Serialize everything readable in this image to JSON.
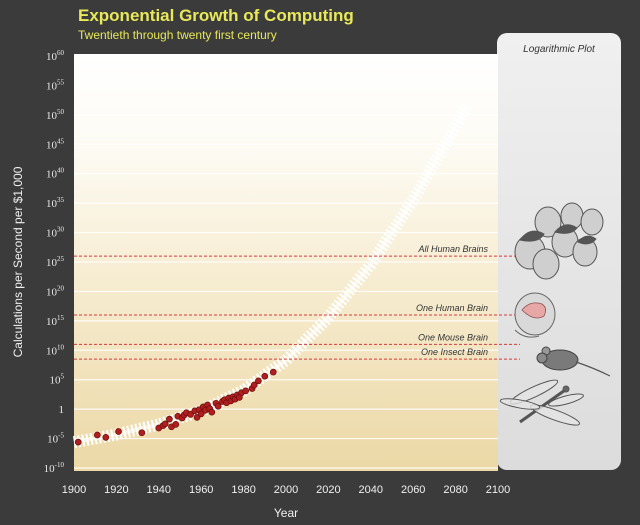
{
  "page": {
    "title": "Exponential Growth of Computing",
    "subtitle": "Twentieth through twenty first century"
  },
  "chart_data": {
    "type": "scatter",
    "title": "Exponential Growth of Computing",
    "subtitle": "Twentieth through twenty first century",
    "xlabel": "Year",
    "ylabel": "Calculations per Second per $1,000",
    "y_scale": "log",
    "xlim": [
      1900,
      2100
    ],
    "ylim_exponent": [
      -10,
      60
    ],
    "x_ticks": [
      "1900",
      "1920",
      "1940",
      "1960",
      "1980",
      "2000",
      "2020",
      "2040",
      "2060",
      "2080",
      "2100"
    ],
    "y_ticks": [
      {
        "base": "10",
        "exp": "-10",
        "e": -10
      },
      {
        "base": "10",
        "exp": "-5",
        "e": -5
      },
      {
        "base": "1",
        "exp": "",
        "e": 0
      },
      {
        "base": "10",
        "exp": "5",
        "e": 5
      },
      {
        "base": "10",
        "exp": "10",
        "e": 10
      },
      {
        "base": "10",
        "exp": "15",
        "e": 15
      },
      {
        "base": "10",
        "exp": "20",
        "e": 20
      },
      {
        "base": "10",
        "exp": "25",
        "e": 25
      },
      {
        "base": "10",
        "exp": "30",
        "e": 30
      },
      {
        "base": "10",
        "exp": "35",
        "e": 35
      },
      {
        "base": "10",
        "exp": "40",
        "e": 40
      },
      {
        "base": "10",
        "exp": "45",
        "e": 45
      },
      {
        "base": "10",
        "exp": "50",
        "e": 50
      },
      {
        "base": "10",
        "exp": "55",
        "e": 55
      },
      {
        "base": "10",
        "exp": "60",
        "e": 60
      }
    ],
    "grid": true,
    "panel_label": "Logarithmic Plot",
    "reference_lines": [
      {
        "label": "All Human Brains",
        "log10": 26,
        "color": "#d43b3b"
      },
      {
        "label": "One Human Brain",
        "log10": 16,
        "color": "#d43b3b"
      },
      {
        "label": "One Mouse Brain",
        "log10": 11,
        "color": "#d43b3b"
      },
      {
        "label": "One Insect Brain",
        "log10": 8.5,
        "color": "#d43b3b"
      }
    ],
    "trend_curve": [
      [
        1900,
        -5.6
      ],
      [
        1920,
        -4.3
      ],
      [
        1940,
        -2.6
      ],
      [
        1960,
        -0.3
      ],
      [
        1980,
        3.2
      ],
      [
        2000,
        8.3
      ],
      [
        2020,
        15.6
      ],
      [
        2040,
        24.6
      ],
      [
        2060,
        35.6
      ],
      [
        2080,
        48.0
      ],
      [
        2085,
        51.7
      ]
    ],
    "points": [
      [
        1902,
        -5.6
      ],
      [
        1911,
        -4.4
      ],
      [
        1915,
        -4.8
      ],
      [
        1921,
        -3.8
      ],
      [
        1932,
        -4.0
      ],
      [
        1940,
        -3.2
      ],
      [
        1942,
        -2.8
      ],
      [
        1943,
        -2.5
      ],
      [
        1945,
        -1.7
      ],
      [
        1946,
        -3.0
      ],
      [
        1948,
        -2.6
      ],
      [
        1949,
        -1.2
      ],
      [
        1951,
        -1.5
      ],
      [
        1952,
        -1.0
      ],
      [
        1953,
        -0.6
      ],
      [
        1955,
        -0.9
      ],
      [
        1957,
        -0.3
      ],
      [
        1958,
        -1.4
      ],
      [
        1959,
        -0.1
      ],
      [
        1960,
        -0.8
      ],
      [
        1961,
        0.4
      ],
      [
        1962,
        -0.2
      ],
      [
        1963,
        0.7
      ],
      [
        1964,
        0.1
      ],
      [
        1965,
        -0.5
      ],
      [
        1967,
        1.0
      ],
      [
        1968,
        0.5
      ],
      [
        1970,
        1.3
      ],
      [
        1971,
        1.6
      ],
      [
        1972,
        1.1
      ],
      [
        1973,
        1.9
      ],
      [
        1974,
        1.4
      ],
      [
        1975,
        2.1
      ],
      [
        1976,
        1.7
      ],
      [
        1977,
        2.4
      ],
      [
        1978,
        2.0
      ],
      [
        1979,
        2.8
      ],
      [
        1981,
        3.1
      ],
      [
        1984,
        3.5
      ],
      [
        1985,
        4.1
      ],
      [
        1987,
        4.8
      ],
      [
        1990,
        5.6
      ],
      [
        1994,
        6.3
      ]
    ],
    "colors": {
      "points": "#b01e1e",
      "reference": "#d43b3b",
      "background_top": "#ffffff",
      "background_bottom": "#efdcae",
      "title": "#e8e85a"
    }
  }
}
